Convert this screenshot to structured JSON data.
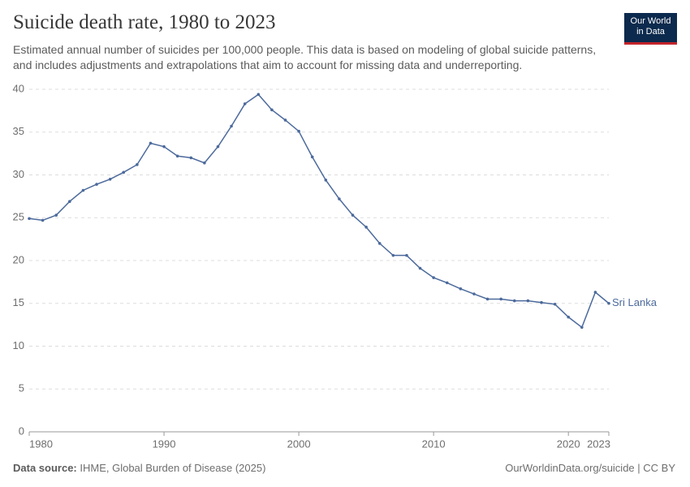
{
  "chart_data": {
    "type": "line",
    "title": "Suicide death rate, 1980 to 2023",
    "subtitle": "Estimated annual number of suicides per 100,000 people. This data is based on modeling of global suicide patterns, and includes adjustments and extrapolations that aim to account for missing data and underreporting.",
    "logo": [
      "Our World",
      "in Data"
    ],
    "x": [
      1980,
      1981,
      1982,
      1983,
      1984,
      1985,
      1986,
      1987,
      1988,
      1989,
      1990,
      1991,
      1992,
      1993,
      1994,
      1995,
      1996,
      1997,
      1998,
      1999,
      2000,
      2001,
      2002,
      2003,
      2004,
      2005,
      2006,
      2007,
      2008,
      2009,
      2010,
      2011,
      2012,
      2013,
      2014,
      2015,
      2016,
      2017,
      2018,
      2019,
      2020,
      2021,
      2022,
      2023
    ],
    "series": [
      {
        "name": "Sri Lanka",
        "color": "#4c6a9c",
        "values": [
          24.9,
          24.7,
          25.3,
          26.9,
          28.2,
          28.9,
          29.5,
          30.3,
          31.2,
          33.7,
          33.3,
          32.2,
          32.0,
          31.4,
          33.3,
          35.7,
          38.3,
          39.4,
          37.6,
          36.4,
          35.1,
          32.1,
          29.4,
          27.2,
          25.3,
          23.9,
          22.0,
          20.6,
          20.6,
          19.1,
          18.0,
          17.4,
          16.7,
          16.1,
          15.5,
          15.5,
          15.3,
          15.3,
          15.1,
          14.9,
          13.4,
          12.2,
          16.3,
          15.0
        ]
      }
    ],
    "xlim": [
      1980,
      2023
    ],
    "xticks": [
      1980,
      1990,
      2000,
      2010,
      2020,
      2023
    ],
    "ylim": [
      0,
      40
    ],
    "yticks": [
      0,
      5,
      10,
      15,
      20,
      25,
      30,
      35,
      40
    ],
    "grid": true,
    "source_label": "Data source:",
    "source": "IHME, Global Burden of Disease (2025)",
    "credit": "OurWorldinData.org/suicide | CC BY"
  }
}
